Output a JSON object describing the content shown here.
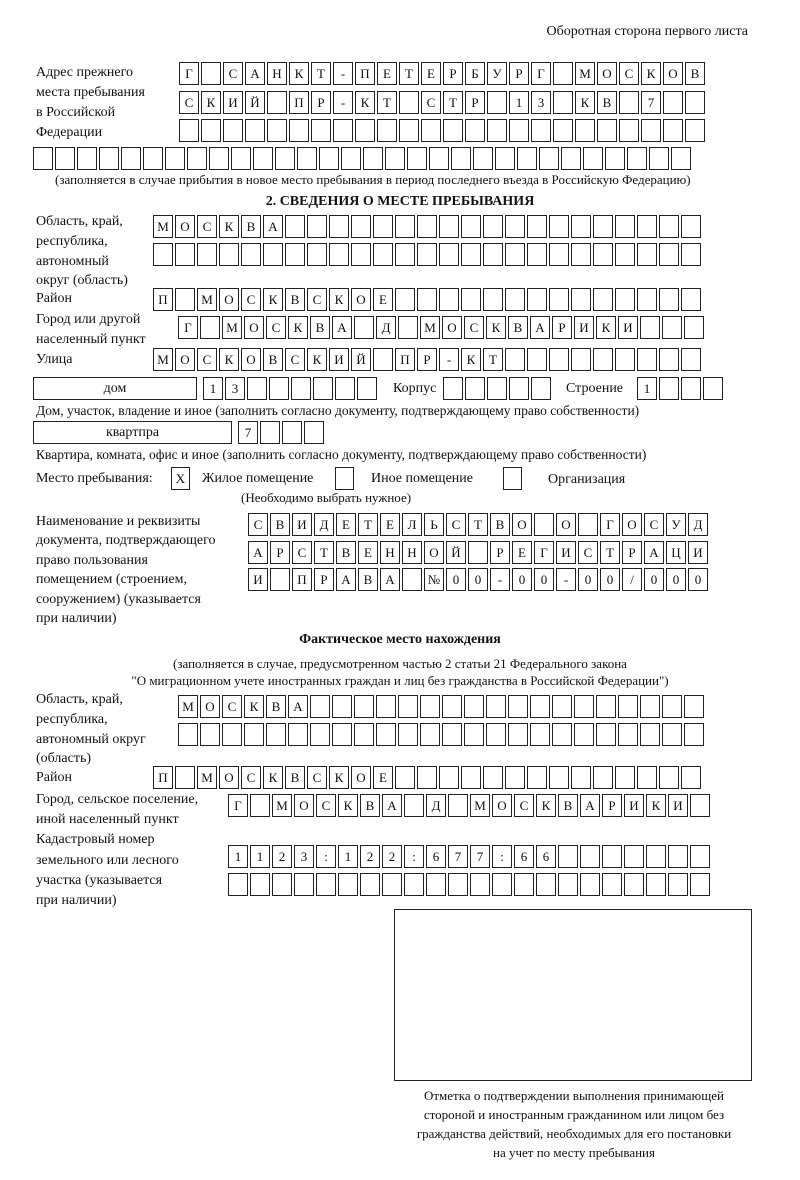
{
  "header": {
    "page_side": "Оборотная сторона первого листа"
  },
  "previous_address": {
    "label": "Адрес прежнего места пребывания в Российской Федерации",
    "label_lines": [
      "Адрес прежнего",
      "места пребывания",
      "в Российской",
      "Федерации"
    ],
    "rows": [
      [
        "Г",
        "",
        "С",
        "А",
        "Н",
        "К",
        "Т",
        "-",
        "П",
        "Е",
        "Т",
        "Е",
        "Р",
        "Б",
        "У",
        "Р",
        "Г",
        "",
        "М",
        "О",
        "С",
        "К",
        "О",
        "В"
      ],
      [
        "С",
        "К",
        "И",
        "Й",
        "",
        "П",
        "Р",
        "-",
        "К",
        "Т",
        "",
        "С",
        "Т",
        "Р",
        "",
        "1",
        "3",
        "",
        "К",
        "В",
        "",
        "7",
        "",
        ""
      ],
      [
        "",
        "",
        "",
        "",
        "",
        "",
        "",
        "",
        "",
        "",
        "",
        "",
        "",
        "",
        "",
        "",
        "",
        "",
        "",
        "",
        "",
        "",
        "",
        ""
      ],
      [
        "",
        "",
        "",
        "",
        "",
        "",
        "",
        "",
        "",
        "",
        "",
        "",
        "",
        "",
        "",
        "",
        "",
        "",
        "",
        "",
        "",
        "",
        "",
        "",
        "",
        "",
        "",
        "",
        "",
        ""
      ]
    ],
    "note": "(заполняется в случае прибытия в новое место пребывания в период последнего въезда в Российскую Федерацию)"
  },
  "section2": {
    "title": "2. СВЕДЕНИЯ О МЕСТЕ ПРЕБЫВАНИЯ",
    "region_label_lines": [
      "Область, край,",
      "республика,",
      "автономный",
      "округ (область)"
    ],
    "region_rows": [
      [
        "М",
        "О",
        "С",
        "К",
        "В",
        "А",
        "",
        "",
        "",
        "",
        "",
        "",
        "",
        "",
        "",
        "",
        "",
        "",
        "",
        "",
        "",
        "",
        "",
        "",
        ""
      ],
      [
        "",
        "",
        "",
        "",
        "",
        "",
        "",
        "",
        "",
        "",
        "",
        "",
        "",
        "",
        "",
        "",
        "",
        "",
        "",
        "",
        "",
        "",
        "",
        "",
        ""
      ]
    ],
    "district_label": "Район",
    "district_row": [
      "П",
      "",
      "М",
      "О",
      "С",
      "К",
      "В",
      "С",
      "К",
      "О",
      "Е",
      "",
      "",
      "",
      "",
      "",
      "",
      "",
      "",
      "",
      "",
      "",
      "",
      "",
      ""
    ],
    "city_label_lines": [
      "Город или другой",
      "населенный пункт"
    ],
    "city_row": [
      "Г",
      "",
      "М",
      "О",
      "С",
      "К",
      "В",
      "А",
      "",
      "Д",
      "",
      "М",
      "О",
      "С",
      "К",
      "В",
      "А",
      "Р",
      "И",
      "К",
      "И",
      "",
      "",
      ""
    ],
    "street_label": "Улица",
    "street_row": [
      "М",
      "О",
      "С",
      "К",
      "О",
      "В",
      "С",
      "К",
      "И",
      "Й",
      "",
      "П",
      "Р",
      "-",
      "К",
      "Т",
      "",
      "",
      "",
      "",
      "",
      "",
      "",
      "",
      ""
    ],
    "house_type": "дом",
    "house_cells": [
      "1",
      "3",
      "",
      "",
      "",
      "",
      "",
      ""
    ],
    "building_label": "Корпус",
    "building_cells": [
      "",
      "",
      "",
      "",
      ""
    ],
    "structure_label": "Строение",
    "structure_cells": [
      "1",
      "",
      "",
      ""
    ],
    "house_note": "Дом, участок, владение и иное (заполнить согласно документу, подтверждающему право собственности)",
    "apartment_type": "квартпра",
    "apartment_cells": [
      "7",
      "",
      "",
      ""
    ],
    "apartment_note": "Квартира, комната, офис и иное (заполнить согласно документу, подтверждающему право собственности)",
    "stay_place_label": "Место пребывания:",
    "options": [
      {
        "label": "Жилое помещение",
        "mark": "X"
      },
      {
        "label": "Иное помещение",
        "mark": ""
      },
      {
        "label": "Организация",
        "mark": ""
      }
    ],
    "choose_note": "(Необходимо выбрать нужное)",
    "doc_label_lines": [
      "Наименование и реквизиты",
      "документа, подтверждающего",
      "право пользования",
      "помещением (строением,",
      "сооружением) (указывается",
      "при наличии)"
    ],
    "doc_rows": [
      [
        "С",
        "В",
        "И",
        "Д",
        "Е",
        "Т",
        "Е",
        "Л",
        "Ь",
        "С",
        "Т",
        "В",
        "О",
        "",
        "О",
        "",
        "Г",
        "О",
        "С",
        "У",
        "Д"
      ],
      [
        "А",
        "Р",
        "С",
        "Т",
        "В",
        "Е",
        "Н",
        "Н",
        "О",
        "Й",
        "",
        "Р",
        "Е",
        "Г",
        "И",
        "С",
        "Т",
        "Р",
        "А",
        "Ц",
        "И"
      ],
      [
        "И",
        "",
        "П",
        "Р",
        "А",
        "В",
        "А",
        "",
        "№",
        "0",
        "0",
        "-",
        "0",
        "0",
        "-",
        "0",
        "0",
        "/",
        "0",
        "0",
        "0"
      ]
    ]
  },
  "actual_location": {
    "title": "Фактическое место нахождения",
    "note_lines": [
      "(заполняется в случае, предусмотренном частью 2 статьи 21 Федерального закона",
      "\"О миграционном учете иностранных граждан и лиц без гражданства в Российской Федерации\")"
    ],
    "region_label_lines": [
      "Область, край,",
      "республика,",
      "автономный округ",
      "(область)"
    ],
    "region_rows": [
      [
        "М",
        "О",
        "С",
        "К",
        "В",
        "А",
        "",
        "",
        "",
        "",
        "",
        "",
        "",
        "",
        "",
        "",
        "",
        "",
        "",
        "",
        "",
        "",
        "",
        ""
      ],
      [
        "",
        "",
        "",
        "",
        "",
        "",
        "",
        "",
        "",
        "",
        "",
        "",
        "",
        "",
        "",
        "",
        "",
        "",
        "",
        "",
        "",
        "",
        "",
        ""
      ]
    ],
    "district_label": "Район",
    "district_row": [
      "П",
      "",
      "М",
      "О",
      "С",
      "К",
      "В",
      "С",
      "К",
      "О",
      "Е",
      "",
      "",
      "",
      "",
      "",
      "",
      "",
      "",
      "",
      "",
      "",
      "",
      "",
      ""
    ],
    "city_label_lines": [
      "Город, сельское поселение,",
      "иной населенный пункт"
    ],
    "city_row": [
      "Г",
      "",
      "М",
      "О",
      "С",
      "К",
      "В",
      "А",
      "",
      "Д",
      "",
      "М",
      "О",
      "С",
      "К",
      "В",
      "А",
      "Р",
      "И",
      "К",
      "И",
      ""
    ],
    "cadastral_label_lines": [
      "Кадастровый номер",
      "земельного или лесного",
      "участка (указывается",
      "при наличии)"
    ],
    "cadastral_rows": [
      [
        "1",
        "1",
        "2",
        "3",
        ":",
        "1",
        "2",
        "2",
        ":",
        "6",
        "7",
        "7",
        ":",
        "6",
        "6",
        "",
        "",
        "",
        "",
        "",
        "",
        ""
      ],
      [
        "",
        "",
        "",
        "",
        "",
        "",
        "",
        "",
        "",
        "",
        "",
        "",
        "",
        "",
        "",
        "",
        "",
        "",
        "",
        "",
        "",
        ""
      ]
    ]
  },
  "confirmation": {
    "caption_lines": [
      "Отметка о подтверждении выполнения принимающей",
      "стороной и иностранным гражданином или лицом без",
      "гражданства действий, необходимых для его постановки",
      "на учет по месту пребывания"
    ]
  }
}
